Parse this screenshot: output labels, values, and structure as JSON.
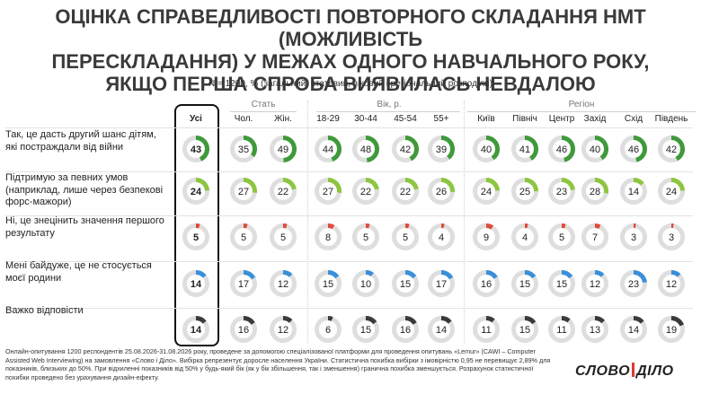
{
  "title": "ОЦІНКА СПРАВЕДЛИВОСТІ ПОВТОРНОГО СКЛАДАННЯ НМТ (МОЖЛИВІСТЬ ПЕРЕСКЛАДАННЯ) У МЕЖАХ ОДНОГО НАВЧАЛЬНОГО РОКУ, ЯКЩО ПЕРША СПРОБА ВИЯВИЛАСЬ НЕВДАЛОЮ",
  "subtitle": "N = 1200, % (загальний, статевий, віковий і регіональний розподіли)",
  "groups": {
    "sex": "Стать",
    "age": "Вік, р.",
    "region": "Регіон"
  },
  "columns": [
    "Усі",
    "Чол.",
    "Жін.",
    "18-29",
    "30-44",
    "45-54",
    "55+",
    "Київ",
    "Північ",
    "Центр",
    "Захід",
    "Схід",
    "Південь"
  ],
  "chart_data": {
    "type": "donut-table",
    "categories": [
      "Усі",
      "Чол.",
      "Жін.",
      "18-29",
      "30-44",
      "45-54",
      "55+",
      "Київ",
      "Північ",
      "Центр",
      "Захід",
      "Схід",
      "Південь"
    ],
    "series": [
      {
        "name": "Так, це дасть другий шанс дітям, які постраждали від війни",
        "color": "#3f9a3a",
        "values": [
          43,
          35,
          49,
          44,
          48,
          42,
          39,
          40,
          41,
          46,
          40,
          46,
          42
        ]
      },
      {
        "name": "Підтримую за певних умов (наприклад, лише через безпекові форс-мажори)",
        "color": "#8cc63f",
        "values": [
          24,
          27,
          22,
          27,
          22,
          22,
          26,
          24,
          25,
          23,
          28,
          14,
          24
        ]
      },
      {
        "name": "Ні, це знецінить значення першого результату",
        "color": "#e04a3a",
        "values": [
          5,
          5,
          5,
          8,
          5,
          5,
          4,
          9,
          4,
          5,
          7,
          3,
          3
        ]
      },
      {
        "name": "Мені байдуже, це не стосується моєї родини",
        "color": "#3a8fd9",
        "values": [
          14,
          17,
          12,
          15,
          10,
          15,
          17,
          16,
          15,
          15,
          12,
          23,
          12
        ]
      },
      {
        "name": "Важко відповісти",
        "color": "#3a3a3a",
        "values": [
          14,
          16,
          12,
          6,
          15,
          16,
          14,
          11,
          15,
          11,
          13,
          14,
          19
        ]
      }
    ],
    "ylim": [
      0,
      100
    ]
  },
  "footer": "Онлайн-опитування 1200 респондентів 25.08.2026-31.08.2026 року, проведене за допомогою спеціалізованої платформи для проведення опитувань «Lemur» (CAWI – Computer Assisted Web Interviewing) на замовлення «Слово і Діло». Вибірка репрезентує доросле населення України. Статистична похибка вибірки з імовірністю 0,95 не перевищує 2,89% для показників, близьких до 50%. При відхиленні показників від 50% у будь-який бік (як у бік збільшення, так і зменшення) гранична похибка зменшується. Розрахунок статистичної похибки проведено без урахування дизайн-ефекту.",
  "logo": {
    "left": "СЛОВО",
    "right": "ДІЛО"
  }
}
